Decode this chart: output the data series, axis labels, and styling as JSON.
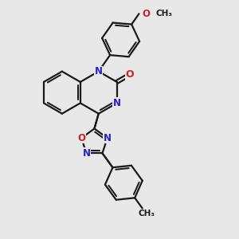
{
  "bg": "#e8e8e8",
  "bc": "#1a1a1a",
  "nc": "#2222cc",
  "oc": "#cc2222",
  "lw": 1.6,
  "figsize": [
    3.0,
    3.0
  ],
  "dpi": 100,
  "xlim": [
    0,
    10
  ],
  "ylim": [
    0,
    10
  ]
}
